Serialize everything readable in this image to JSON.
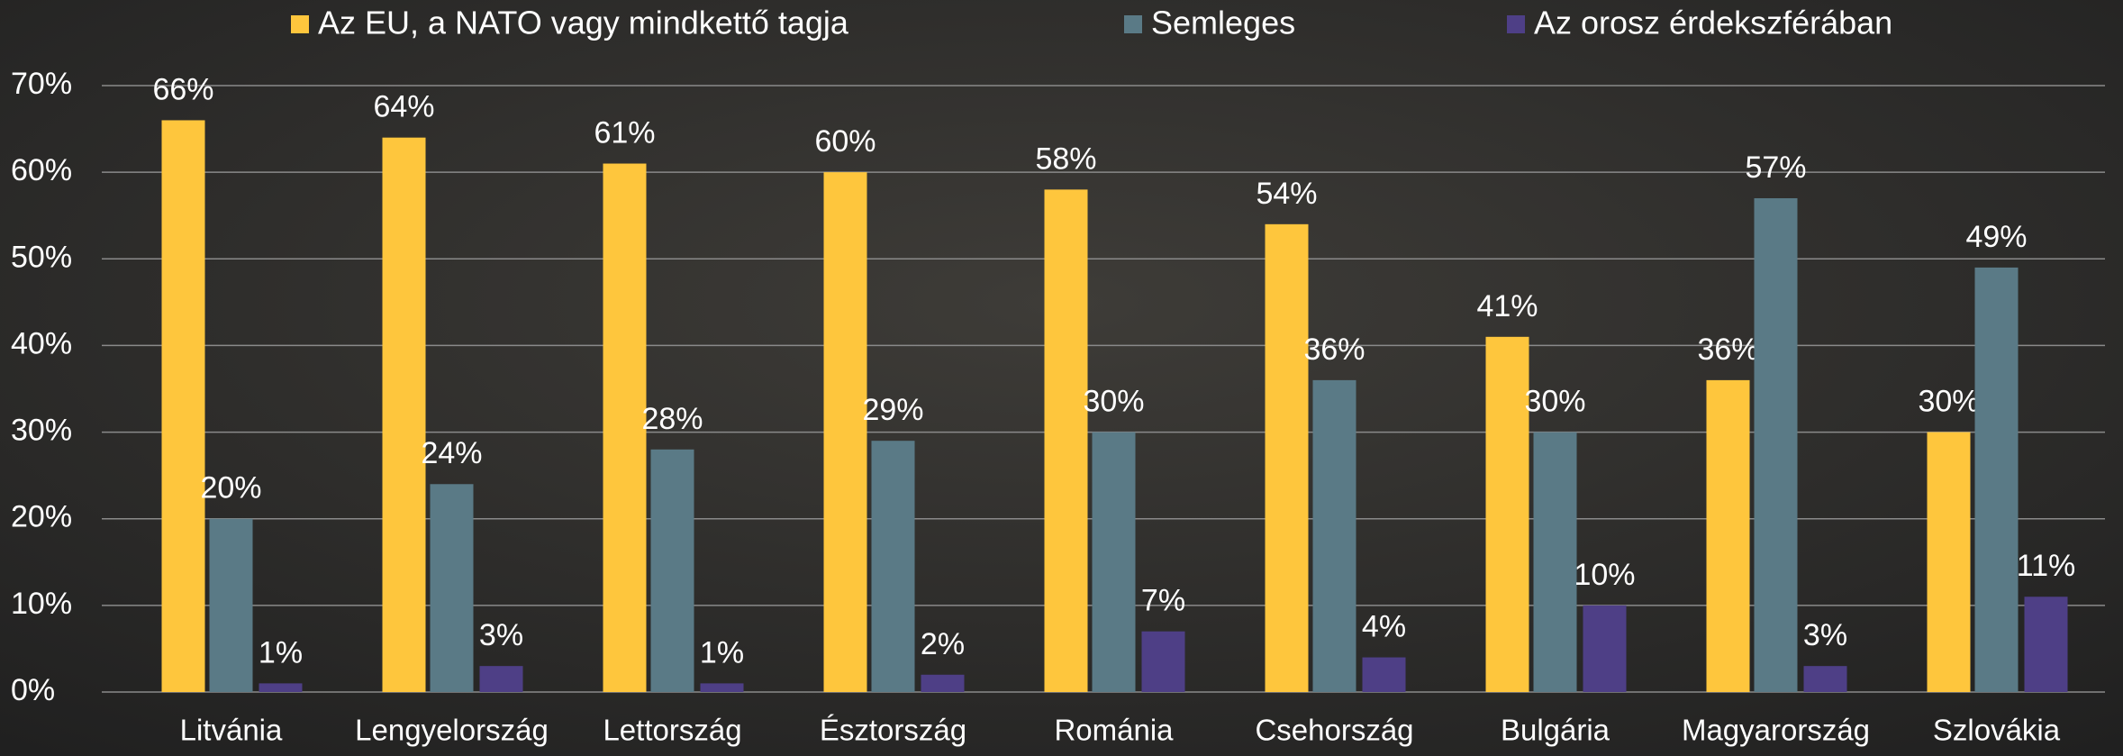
{
  "chart_data": {
    "type": "bar",
    "categories": [
      "Litvánia",
      "Lengyelország",
      "Lettország",
      "Észtország",
      "Románia",
      "Csehország",
      "Bulgária",
      "Magyarország",
      "Szlovákia"
    ],
    "series": [
      {
        "name": "Az EU, a NATO vagy mindkettő tagja",
        "color": "#fec63d",
        "values": [
          66,
          64,
          61,
          60,
          58,
          54,
          41,
          36,
          30
        ],
        "value_labels": [
          "66%",
          "64%",
          "61%",
          "60%",
          "58%",
          "54%",
          "41%",
          "36%",
          "30%"
        ]
      },
      {
        "name": "Semleges",
        "color": "#5a7a86",
        "values": [
          20,
          24,
          28,
          29,
          30,
          36,
          30,
          57,
          49
        ],
        "value_labels": [
          "20%",
          "24%",
          "28%",
          "29%",
          "30%",
          "36%",
          "30%",
          "57%",
          "49%"
        ]
      },
      {
        "name": "Az orosz érdekszférában",
        "color": "#4e3f86",
        "values": [
          1,
          3,
          1,
          2,
          7,
          4,
          10,
          3,
          11
        ],
        "value_labels": [
          "1%",
          "3%",
          "1%",
          "2%",
          "7%",
          "4%",
          "10%",
          "3%",
          "11%"
        ]
      }
    ],
    "ylim": [
      0,
      70
    ],
    "yticks": [
      {
        "value": 0,
        "label": "0%"
      },
      {
        "value": 10,
        "label": "10%"
      },
      {
        "value": 20,
        "label": "20%"
      },
      {
        "value": 30,
        "label": "30%"
      },
      {
        "value": 40,
        "label": "40%"
      },
      {
        "value": 50,
        "label": "50%"
      },
      {
        "value": 60,
        "label": "60%"
      },
      {
        "value": 70,
        "label": "70%"
      }
    ],
    "grid": true,
    "legend": "top"
  }
}
